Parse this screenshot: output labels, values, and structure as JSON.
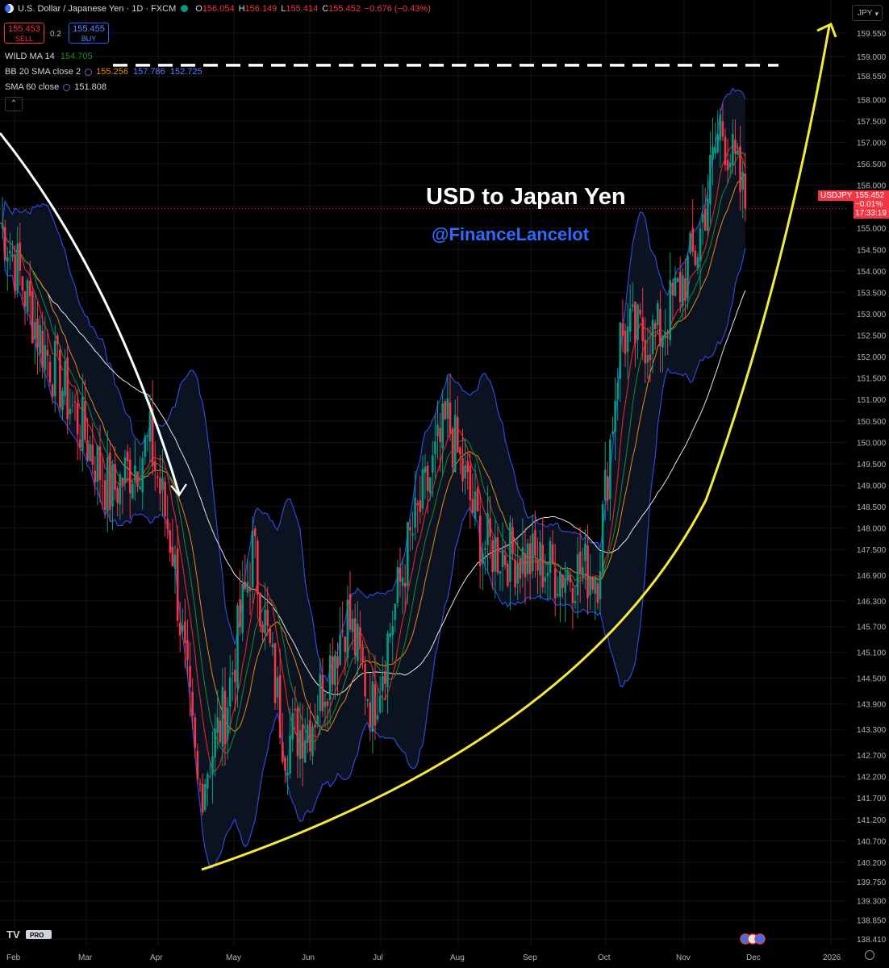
{
  "header": {
    "flag_icon": "us-flag-icon",
    "symbol_title": "U.S. Dollar / Japanese Yen · 1D · FXCM",
    "open_label": "O",
    "open": "156.054",
    "high_label": "H",
    "high": "156.149",
    "low_label": "L",
    "low": "155.414",
    "close_label": "C",
    "close": "155.452",
    "change": "−0.676 (−0.43%)"
  },
  "trade": {
    "sell_price": "155.453",
    "sell_label": "SELL",
    "spread": "0.2",
    "buy_price": "155.455",
    "buy_label": "BUY"
  },
  "indicators": {
    "wild_name": "WILD MA 14",
    "wild_value": "154.705",
    "bb_name": "BB 20 SMA close 2",
    "bb_mid": "155.256",
    "bb_upper": "157.786",
    "bb_lower": "152.725",
    "sma_name": "SMA 60 close",
    "sma_value": "151.808"
  },
  "currency_select": "JPY",
  "annotation": {
    "title": "USD to Japan Yen",
    "handle": "@FinanceLancelot"
  },
  "price_tag": {
    "symbol": "USDJPY",
    "price": "155.452",
    "change": "−0.01%",
    "countdown": "17:33:19"
  },
  "colors": {
    "up": "#089981",
    "down": "#f23645",
    "bb": "#3048d8",
    "wild": "#1f8a2a",
    "bb_mid": "#e58a14",
    "sma": "#e6e6e6",
    "ema_red": "#d8261b",
    "curve": "#f3ea3b",
    "arrow": "#ffffff",
    "dash": "#ffffff"
  },
  "chart_data": {
    "type": "candlestick",
    "symbol": "USDJPY",
    "timeframe": "1D",
    "y_axis": {
      "ticks": [
        "159.550",
        "159.000",
        "158.550",
        "158.000",
        "157.500",
        "157.000",
        "156.500",
        "156.000",
        "155.500",
        "155.000",
        "154.500",
        "154.000",
        "153.500",
        "153.000",
        "152.500",
        "152.000",
        "151.500",
        "151.000",
        "150.500",
        "150.000",
        "149.500",
        "149.000",
        "148.500",
        "148.000",
        "147.500",
        "146.900",
        "146.300",
        "145.700",
        "145.100",
        "144.500",
        "143.900",
        "143.300",
        "142.700",
        "142.200",
        "141.700",
        "141.200",
        "140.700",
        "140.200",
        "139.750",
        "139.300",
        "138.850",
        "138.410"
      ]
    },
    "x_axis": {
      "ticks": [
        "Feb",
        "Mar",
        "Apr",
        "May",
        "Jun",
        "Jul",
        "Aug",
        "Sep",
        "Oct",
        "Nov",
        "Dec",
        "2026"
      ]
    },
    "price_path_anchors": [
      {
        "date": "Jan 15",
        "value": 156.3
      },
      {
        "date": "Feb 1",
        "value": 154.8
      },
      {
        "date": "Feb 15",
        "value": 152.3
      },
      {
        "date": "Mar 1",
        "value": 150.5
      },
      {
        "date": "Mar 15",
        "value": 148.8
      },
      {
        "date": "Apr 1",
        "value": 150.0
      },
      {
        "date": "Apr 10",
        "value": 147.5
      },
      {
        "date": "Apr 20",
        "value": 141.8
      },
      {
        "date": "May 1",
        "value": 143.8
      },
      {
        "date": "May 12",
        "value": 147.5
      },
      {
        "date": "May 25",
        "value": 143.0
      },
      {
        "date": "Jun 5",
        "value": 143.5
      },
      {
        "date": "Jun 20",
        "value": 146.0
      },
      {
        "date": "Jul 1",
        "value": 143.8
      },
      {
        "date": "Jul 15",
        "value": 147.5
      },
      {
        "date": "Jul 31",
        "value": 150.5
      },
      {
        "date": "Aug 15",
        "value": 147.6
      },
      {
        "date": "Sep 1",
        "value": 147.3
      },
      {
        "date": "Sep 15",
        "value": 147.0
      },
      {
        "date": "Oct 1",
        "value": 147.0
      },
      {
        "date": "Oct 10",
        "value": 152.5
      },
      {
        "date": "Oct 25",
        "value": 152.5
      },
      {
        "date": "Nov 10",
        "value": 154.5
      },
      {
        "date": "Nov 20",
        "value": 157.5
      },
      {
        "date": "Dec 1",
        "value": 155.45
      }
    ],
    "last_price": 155.452,
    "resistance_dashed_line": 158.8,
    "overlays": [
      "WILD MA 14",
      "BB 20 SMA close 2",
      "SMA 60 close"
    ],
    "annotations": [
      "downtrend arrow Jan–Apr",
      "rising yellow arc from Apr low to ~159.7 at year-end",
      "dashed horizontal line ~158.8"
    ]
  }
}
